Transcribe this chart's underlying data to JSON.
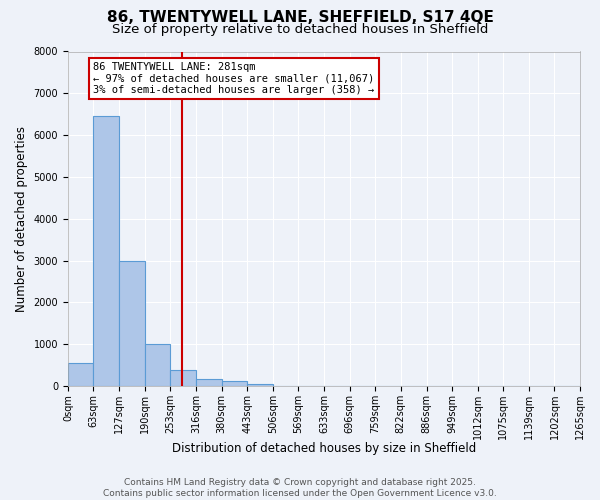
{
  "title": "86, TWENTYWELL LANE, SHEFFIELD, S17 4QE",
  "subtitle": "Size of property relative to detached houses in Sheffield",
  "xlabel": "Distribution of detached houses by size in Sheffield",
  "ylabel": "Number of detached properties",
  "bin_edges": [
    0,
    63,
    127,
    190,
    253,
    316,
    380,
    443,
    506,
    569,
    633,
    696,
    759,
    822,
    886,
    949,
    1012,
    1075,
    1139,
    1202,
    1265
  ],
  "bar_heights": [
    550,
    6450,
    3000,
    1000,
    380,
    180,
    110,
    60,
    0,
    0,
    0,
    0,
    0,
    0,
    0,
    0,
    0,
    0,
    0,
    0
  ],
  "bar_color": "#aec6e8",
  "bar_edge_color": "#5b9bd5",
  "bar_linewidth": 0.8,
  "property_size": 281,
  "red_line_color": "#cc0000",
  "annotation_text": "86 TWENTYWELL LANE: 281sqm\n← 97% of detached houses are smaller (11,067)\n3% of semi-detached houses are larger (358) →",
  "annotation_box_color": "#cc0000",
  "ylim": [
    0,
    8000
  ],
  "yticks": [
    0,
    1000,
    2000,
    3000,
    4000,
    5000,
    6000,
    7000,
    8000
  ],
  "bg_color": "#eef2f9",
  "footer_line1": "Contains HM Land Registry data © Crown copyright and database right 2025.",
  "footer_line2": "Contains public sector information licensed under the Open Government Licence v3.0.",
  "title_fontsize": 11,
  "subtitle_fontsize": 9.5,
  "axis_label_fontsize": 8.5,
  "tick_fontsize": 7,
  "footer_fontsize": 6.5,
  "annotation_fontsize": 7.5
}
